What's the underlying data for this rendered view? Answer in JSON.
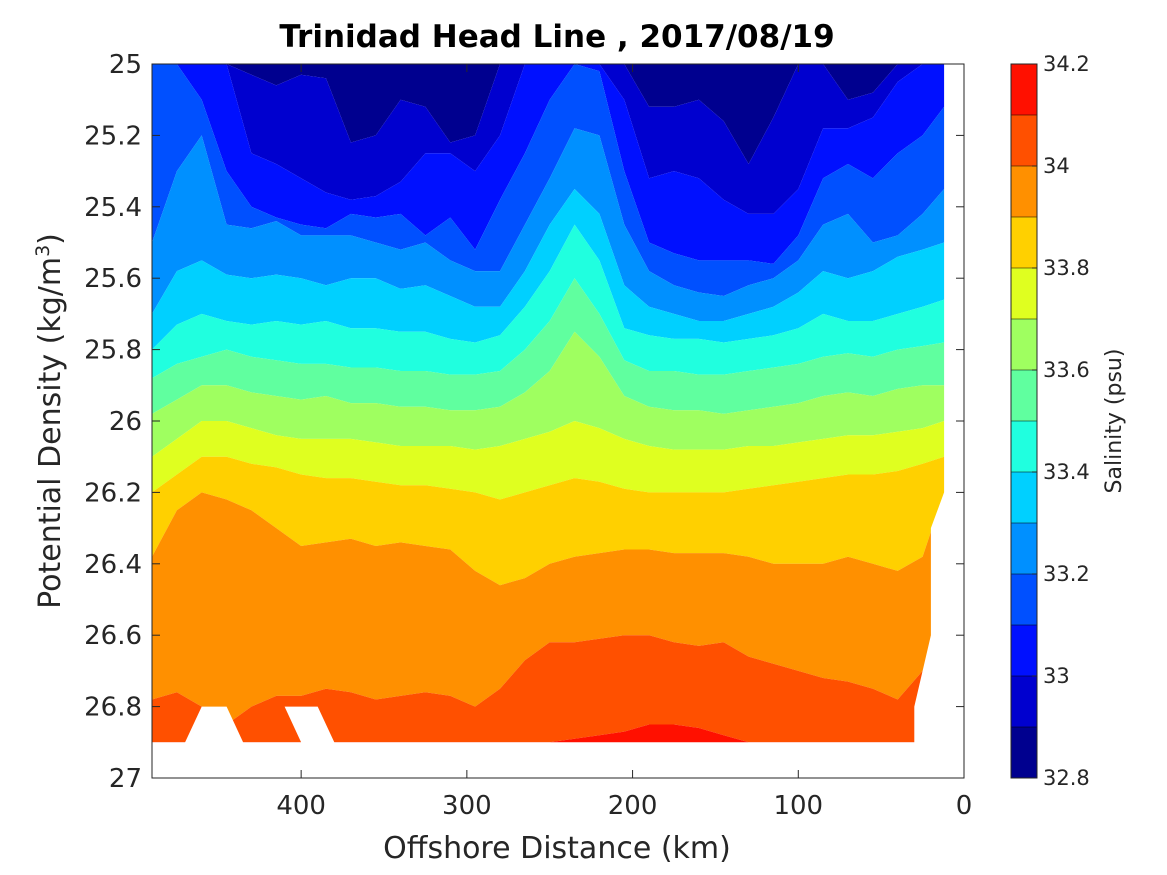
{
  "chart_data": {
    "type": "heatmap",
    "subtype": "filled-contour",
    "title": "Trinidad Head Line , 2017/08/19",
    "xlabel": "Offshore Distance (km)",
    "ylabel_main": "Potential Density (kg/m",
    "ylabel_sup": "3",
    "ylabel_close": ")",
    "x_axis_reversed": true,
    "y_axis_reversed": true,
    "xlim": [
      490,
      0
    ],
    "ylim": [
      25,
      27
    ],
    "x_ticks": [
      400,
      300,
      200,
      100,
      0
    ],
    "y_ticks": [
      25,
      25.2,
      25.4,
      25.6,
      25.8,
      26,
      26.2,
      26.4,
      26.6,
      26.8,
      27
    ],
    "colorbar": {
      "label": "Salinity (psu)",
      "range": [
        32.8,
        34.2
      ],
      "levels": [
        32.8,
        32.9,
        33.0,
        33.1,
        33.2,
        33.3,
        33.4,
        33.5,
        33.6,
        33.7,
        33.8,
        33.9,
        34.0,
        34.1,
        34.2
      ],
      "tick_values": [
        32.8,
        33,
        33.2,
        33.4,
        33.6,
        33.8,
        34,
        34.2
      ],
      "colors": [
        "#00008F",
        "#0000CF",
        "#0010FF",
        "#0050FF",
        "#0090FF",
        "#00D0FF",
        "#20FFDF",
        "#60FF9F",
        "#9FFF60",
        "#DFFF20",
        "#FFD000",
        "#FF9000",
        "#FF5000",
        "#FF1000",
        "#CF0000"
      ]
    },
    "x": [
      490,
      475,
      460,
      445,
      430,
      415,
      400,
      385,
      370,
      355,
      340,
      325,
      310,
      295,
      280,
      265,
      250,
      235,
      220,
      205,
      190,
      175,
      160,
      145,
      130,
      115,
      100,
      85,
      70,
      55,
      40,
      25,
      12
    ],
    "boundaries": [
      {
        "level": 32.9,
        "density": [
          25.0,
          25.0,
          25.0,
          25.0,
          25.03,
          25.06,
          25.03,
          25.04,
          25.22,
          25.2,
          25.1,
          25.12,
          25.22,
          25.2,
          25.0,
          25.0,
          25.0,
          25.0,
          25.0,
          25.0,
          25.12,
          25.12,
          25.1,
          25.16,
          25.28,
          25.15,
          25.0,
          25.0,
          25.1,
          25.08,
          25.0,
          25.0,
          25.0
        ]
      },
      {
        "level": 33.0,
        "density": [
          25.0,
          25.0,
          25.0,
          25.0,
          25.25,
          25.28,
          25.32,
          25.36,
          25.38,
          25.37,
          25.33,
          25.25,
          25.25,
          25.3,
          25.2,
          25.0,
          25.0,
          25.0,
          25.0,
          25.1,
          25.32,
          25.3,
          25.32,
          25.38,
          25.42,
          25.42,
          25.35,
          25.18,
          25.18,
          25.15,
          25.05,
          25.0,
          25.0
        ]
      },
      {
        "level": 33.1,
        "density": [
          25.0,
          25.0,
          25.1,
          25.3,
          25.4,
          25.43,
          25.45,
          25.46,
          25.42,
          25.43,
          25.42,
          25.48,
          25.43,
          25.52,
          25.38,
          25.25,
          25.1,
          25.0,
          25.02,
          25.3,
          25.5,
          25.53,
          25.55,
          25.55,
          25.55,
          25.56,
          25.48,
          25.32,
          25.28,
          25.32,
          25.25,
          25.2,
          25.12
        ]
      },
      {
        "level": 33.2,
        "density": [
          25.5,
          25.3,
          25.2,
          25.45,
          25.46,
          25.44,
          25.48,
          25.48,
          25.48,
          25.5,
          25.52,
          25.5,
          25.55,
          25.58,
          25.58,
          25.45,
          25.32,
          25.18,
          25.2,
          25.45,
          25.58,
          25.62,
          25.64,
          25.65,
          25.62,
          25.6,
          25.55,
          25.45,
          25.42,
          25.5,
          25.48,
          25.42,
          25.35
        ]
      },
      {
        "level": 33.3,
        "density": [
          25.7,
          25.58,
          25.55,
          25.59,
          25.6,
          25.59,
          25.6,
          25.62,
          25.6,
          25.6,
          25.63,
          25.62,
          25.65,
          25.68,
          25.68,
          25.58,
          25.45,
          25.35,
          25.42,
          25.62,
          25.68,
          25.7,
          25.72,
          25.72,
          25.7,
          25.68,
          25.64,
          25.58,
          25.6,
          25.58,
          25.54,
          25.52,
          25.5
        ]
      },
      {
        "level": 33.4,
        "density": [
          25.8,
          25.73,
          25.7,
          25.72,
          25.73,
          25.72,
          25.73,
          25.72,
          25.74,
          25.74,
          25.75,
          25.75,
          25.77,
          25.78,
          25.76,
          25.68,
          25.58,
          25.45,
          25.55,
          25.74,
          25.76,
          25.77,
          25.77,
          25.78,
          25.77,
          25.76,
          25.74,
          25.7,
          25.72,
          25.72,
          25.7,
          25.68,
          25.66
        ]
      },
      {
        "level": 33.5,
        "density": [
          25.88,
          25.84,
          25.82,
          25.8,
          25.82,
          25.83,
          25.84,
          25.84,
          25.85,
          25.85,
          25.86,
          25.86,
          25.87,
          25.87,
          25.86,
          25.8,
          25.72,
          25.6,
          25.7,
          25.83,
          25.86,
          25.86,
          25.87,
          25.87,
          25.86,
          25.85,
          25.84,
          25.82,
          25.81,
          25.82,
          25.8,
          25.79,
          25.78
        ]
      },
      {
        "level": 33.6,
        "density": [
          25.98,
          25.94,
          25.9,
          25.9,
          25.92,
          25.93,
          25.94,
          25.93,
          25.95,
          25.95,
          25.96,
          25.96,
          25.97,
          25.97,
          25.96,
          25.92,
          25.86,
          25.75,
          25.82,
          25.93,
          25.96,
          25.97,
          25.97,
          25.98,
          25.97,
          25.96,
          25.95,
          25.93,
          25.92,
          25.93,
          25.91,
          25.9,
          25.9
        ]
      },
      {
        "level": 33.7,
        "density": [
          26.1,
          26.05,
          26.0,
          26.0,
          26.02,
          26.04,
          26.05,
          26.05,
          26.05,
          26.06,
          26.07,
          26.07,
          26.07,
          26.08,
          26.07,
          26.05,
          26.03,
          26.0,
          26.02,
          26.05,
          26.07,
          26.08,
          26.08,
          26.08,
          26.07,
          26.07,
          26.06,
          26.05,
          26.04,
          26.04,
          26.03,
          26.02,
          26.0
        ]
      },
      {
        "level": 33.8,
        "density": [
          26.2,
          26.15,
          26.1,
          26.1,
          26.12,
          26.13,
          26.15,
          26.16,
          26.16,
          26.17,
          26.18,
          26.18,
          26.19,
          26.2,
          26.22,
          26.2,
          26.18,
          26.16,
          26.17,
          26.19,
          26.2,
          26.2,
          26.2,
          26.2,
          26.19,
          26.18,
          26.17,
          26.16,
          26.15,
          26.15,
          26.14,
          26.12,
          26.1
        ]
      },
      {
        "level": 33.9,
        "density": [
          26.38,
          26.25,
          26.2,
          26.22,
          26.25,
          26.3,
          26.35,
          26.34,
          26.33,
          26.35,
          26.34,
          26.35,
          26.36,
          26.42,
          26.46,
          26.44,
          26.4,
          26.38,
          26.37,
          26.36,
          26.36,
          26.37,
          26.37,
          26.37,
          26.38,
          26.4,
          26.4,
          26.4,
          26.38,
          26.4,
          26.42,
          26.38,
          26.2
        ]
      },
      {
        "level": 34.0,
        "density": [
          26.78,
          26.76,
          26.8,
          26.85,
          26.8,
          26.77,
          26.77,
          26.75,
          26.76,
          26.78,
          26.77,
          26.76,
          26.77,
          26.8,
          26.75,
          26.67,
          26.62,
          26.62,
          26.61,
          26.6,
          26.6,
          26.62,
          26.63,
          26.62,
          26.66,
          26.68,
          26.7,
          26.72,
          26.73,
          26.75,
          26.78,
          26.7,
          26.6
        ]
      },
      {
        "level": 34.1,
        "density": [
          26.9,
          26.9,
          26.9,
          26.9,
          26.9,
          26.9,
          26.9,
          26.9,
          26.9,
          26.9,
          26.9,
          26.9,
          26.9,
          26.9,
          26.9,
          26.9,
          26.9,
          26.89,
          26.88,
          26.87,
          26.85,
          26.85,
          26.86,
          26.88,
          26.9,
          26.9,
          26.9,
          26.9,
          26.9,
          26.9,
          26.9,
          26.9,
          26.9
        ]
      }
    ],
    "masked_regions": [
      {
        "note": "no data below deepest samples",
        "x": [
          490,
          12
        ],
        "density": [
          26.9,
          27.0
        ]
      },
      {
        "note": "no data",
        "x": [
          470,
          430
        ],
        "density": [
          26.8,
          27.0
        ]
      },
      {
        "note": "no data",
        "x": [
          400,
          380
        ],
        "density": [
          26.8,
          27.0
        ]
      },
      {
        "note": "no data near shore",
        "x": [
          30,
          0
        ],
        "density": [
          26.2,
          27.0
        ]
      }
    ]
  }
}
